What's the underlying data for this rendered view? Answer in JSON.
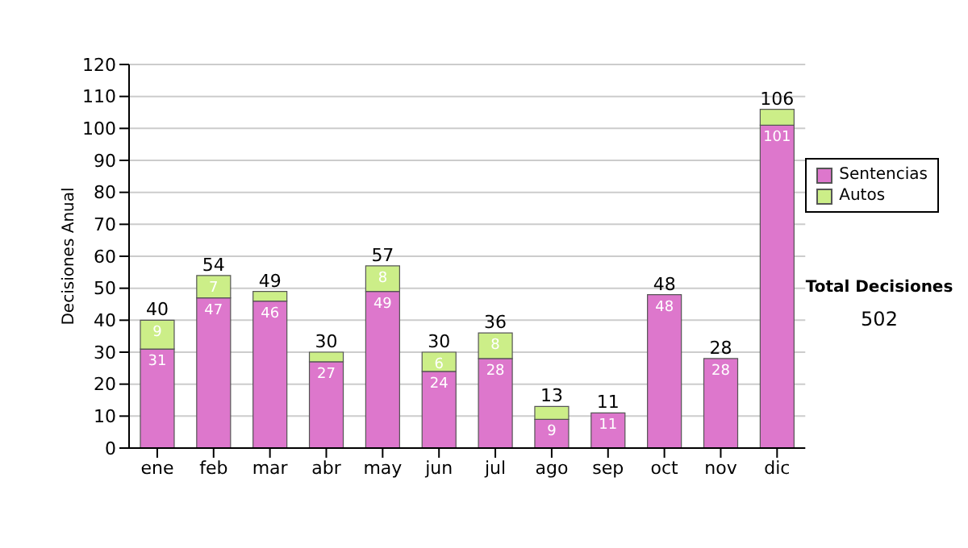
{
  "chart_data": {
    "type": "bar",
    "stacked": true,
    "ylabel": "Decisiones Anual",
    "categories": [
      "ene",
      "feb",
      "mar",
      "abr",
      "may",
      "jun",
      "jul",
      "ago",
      "sep",
      "oct",
      "nov",
      "dic"
    ],
    "series": [
      {
        "name": "Sentencias",
        "color": "#dd77cc",
        "values": [
          31,
          47,
          46,
          27,
          49,
          24,
          28,
          9,
          11,
          48,
          28,
          101
        ],
        "value_labels": [
          "31",
          "47",
          "46",
          "27",
          "49",
          "24",
          "28",
          "9",
          "11",
          "48",
          "28",
          "101"
        ]
      },
      {
        "name": "Autos",
        "color": "#ccee88",
        "values": [
          9,
          7,
          3,
          3,
          8,
          6,
          8,
          4,
          0,
          0,
          0,
          5
        ],
        "value_labels": [
          "9",
          "7",
          null,
          null,
          "8",
          "6",
          "8",
          null,
          null,
          null,
          null,
          null
        ]
      }
    ],
    "totals": [
      "40",
      "54",
      "49",
      "30",
      "57",
      "30",
      "36",
      "13",
      "11",
      "48",
      "28",
      "106"
    ],
    "ylim": [
      0,
      120
    ],
    "yticks": [
      0,
      10,
      20,
      30,
      40,
      50,
      60,
      70,
      80,
      90,
      100,
      110,
      120
    ],
    "grid": "y",
    "legend": "right",
    "annotations": [
      "Total Decisiones",
      "502"
    ]
  }
}
